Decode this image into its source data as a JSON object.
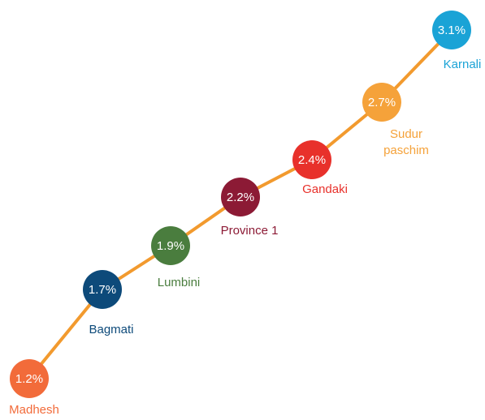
{
  "chart_data": {
    "type": "line",
    "title": "",
    "xlabel": "",
    "ylabel": "",
    "line_color": "#f29a2e",
    "categories": [
      "Madhesh",
      "Bagmati",
      "Lumbini",
      "Province 1",
      "Gandaki",
      "Sudur paschim",
      "Karnali"
    ],
    "values": [
      1.2,
      1.7,
      1.9,
      2.2,
      2.4,
      2.7,
      3.1
    ],
    "value_labels": [
      "1.2%",
      "1.7%",
      "1.9%",
      "2.2%",
      "2.4%",
      "2.7%",
      "3.1%"
    ],
    "label_lines": [
      [
        "Madhesh"
      ],
      [
        "Bagmati"
      ],
      [
        "Lumbini"
      ],
      [
        "Province 1"
      ],
      [
        "Gandaki"
      ],
      [
        "Sudur",
        "paschim"
      ],
      [
        "Karnali"
      ]
    ],
    "colors": [
      "#f26b3a",
      "#0d4a7a",
      "#4a7d3e",
      "#8c1a35",
      "#e8312b",
      "#f5a23a",
      "#1aa3d6"
    ]
  }
}
